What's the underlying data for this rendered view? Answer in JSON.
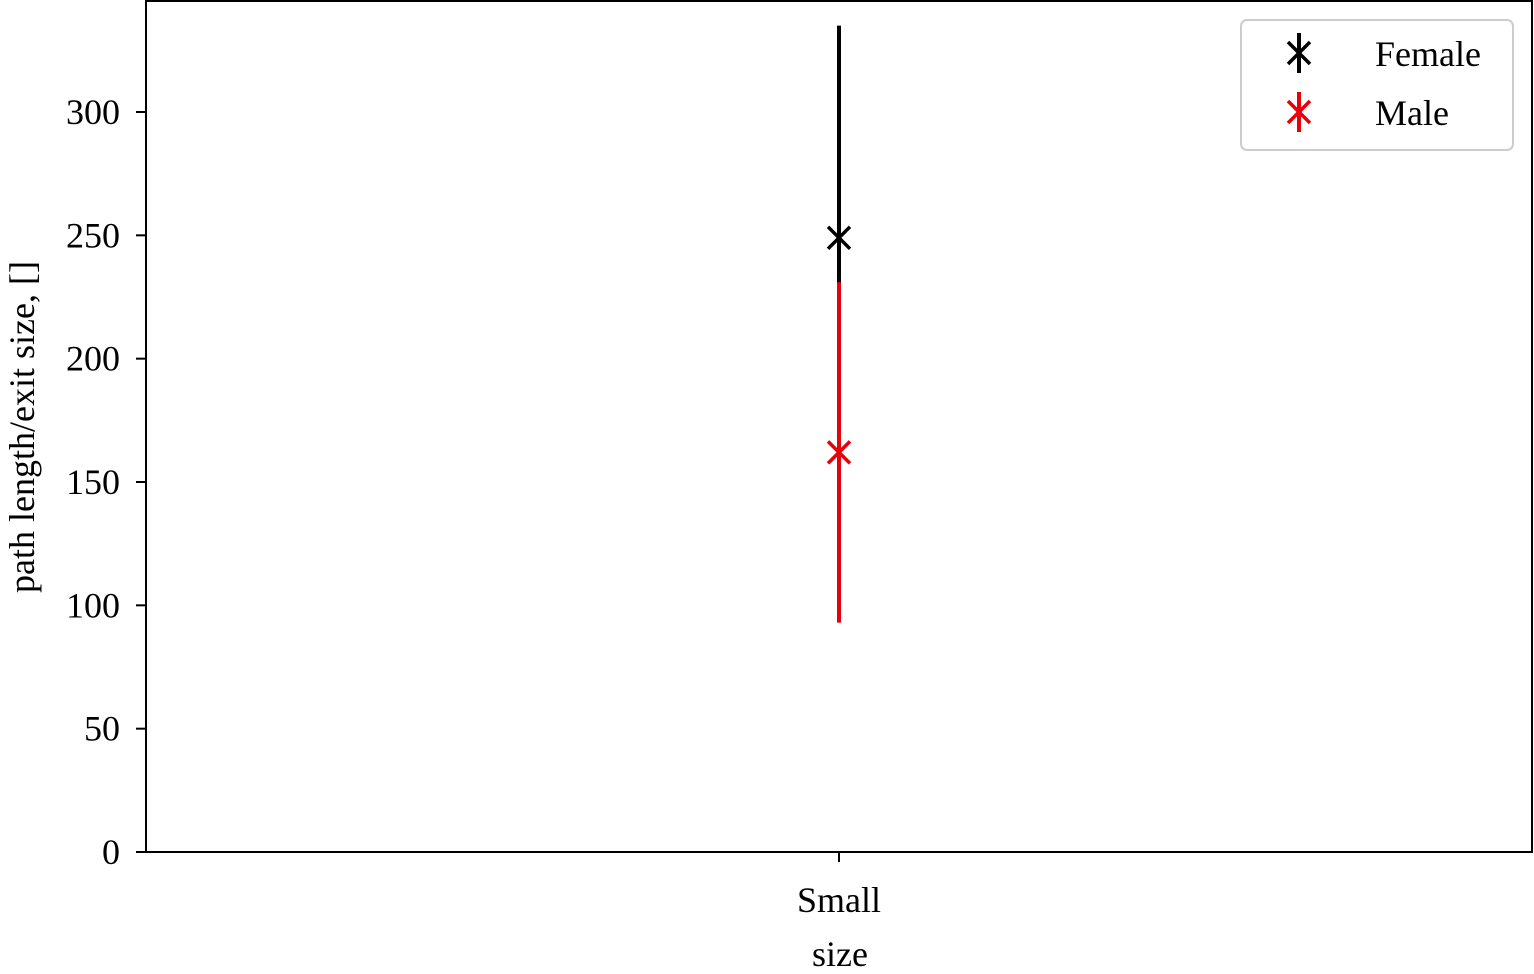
{
  "chart_data": {
    "type": "scatter",
    "xlabel": "size",
    "ylabel": "path length/exit size, []",
    "categories": [
      "Small"
    ],
    "ylim": [
      0,
      345
    ],
    "yticks": [
      0,
      50,
      100,
      150,
      200,
      250,
      300
    ],
    "grid": false,
    "legend_position": "top-right",
    "series": [
      {
        "name": "Female",
        "color": "#000000",
        "marker": "x",
        "points": [
          {
            "x": "Small",
            "y": 249,
            "err_low": 230,
            "err_high": 335
          }
        ]
      },
      {
        "name": "Male",
        "color": "#e8000b",
        "marker": "x",
        "points": [
          {
            "x": "Small",
            "y": 162,
            "err_low": 93,
            "err_high": 231
          }
        ]
      }
    ]
  }
}
